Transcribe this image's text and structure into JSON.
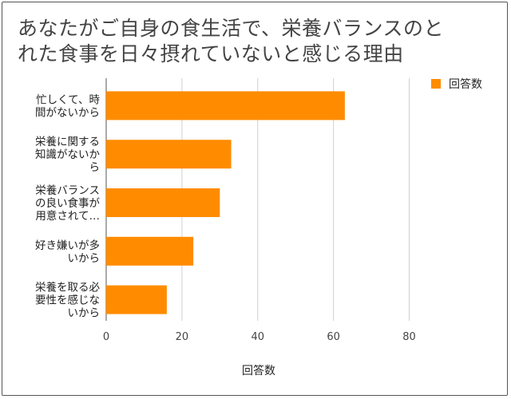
{
  "title_lines": [
    "あなたがご自身の食生活で、栄養バランスのと",
    "れた食事を日々摂れていないと感じる理由"
  ],
  "chart_data": {
    "type": "bar",
    "orientation": "horizontal",
    "title": "あなたがご自身の食生活で、栄養バランスのとれた食事を日々摂れていないと感じる理由",
    "categories": [
      [
        "忙しくて、時",
        "間がないから"
      ],
      [
        "栄養に関する",
        "知識がないか",
        "ら"
      ],
      [
        "栄養バランス",
        "の良い食事が",
        "用意されて…"
      ],
      [
        "好き嫌いが多",
        "いから"
      ],
      [
        "栄養を取る必",
        "要性を感じな",
        "いから"
      ]
    ],
    "series": [
      {
        "name": "回答数",
        "values": [
          63,
          33,
          30,
          23,
          16
        ],
        "color": "#ff8c00"
      }
    ],
    "xlabel": "回答数",
    "xlim": [
      0,
      90
    ],
    "xticks": [
      0,
      20,
      40,
      60,
      80
    ],
    "grid": true,
    "legend": "top-right"
  }
}
